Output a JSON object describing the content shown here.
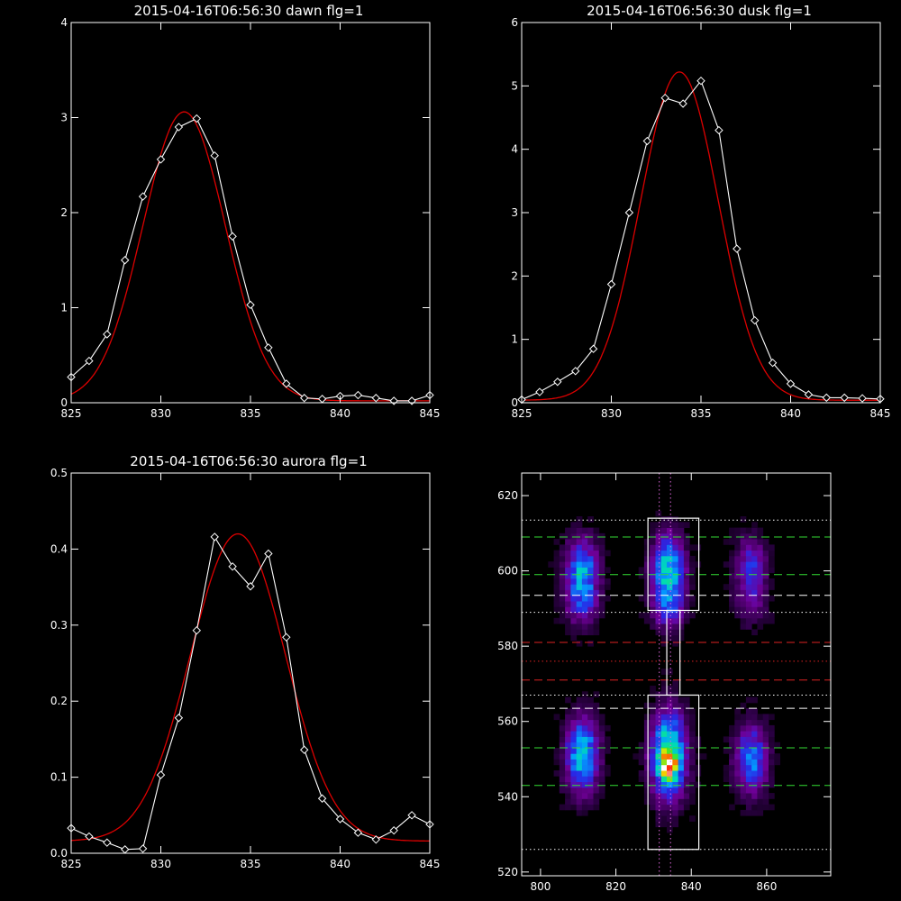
{
  "colors": {
    "background": "#000000",
    "axes": "#ffffff",
    "observed": "#ffffff",
    "fit": "#dd0000",
    "band_green": "#33dd33",
    "band_white": "#ffffff",
    "band_red": "#dd2222",
    "guide": "#dd66dd"
  },
  "chart_data": [
    {
      "id": "dawn",
      "type": "line",
      "title": "2015-04-16T06:56:30 dawn flg=1",
      "xlim": [
        825,
        845
      ],
      "ylim": [
        0,
        4
      ],
      "xticks": [
        825,
        830,
        835,
        840,
        845
      ],
      "yticks": [
        0,
        1,
        2,
        3,
        4
      ],
      "series": [
        {
          "role": "observed",
          "marker": "diamond",
          "x": [
            825,
            826,
            827,
            828,
            829,
            830,
            831,
            832,
            833,
            834,
            835,
            836,
            837,
            838,
            839,
            840,
            841,
            842,
            843,
            844,
            845
          ],
          "y": [
            0.27,
            0.44,
            0.72,
            1.5,
            2.17,
            2.56,
            2.9,
            2.99,
            2.6,
            1.75,
            1.03,
            0.58,
            0.2,
            0.05,
            0.04,
            0.07,
            0.08,
            0.05,
            0.02,
            0.02,
            0.08
          ]
        },
        {
          "role": "fit",
          "gauss": {
            "amp": 3.04,
            "center": 831.3,
            "sigma": 2.3,
            "base": 0.02
          }
        }
      ]
    },
    {
      "id": "dusk",
      "type": "line",
      "title": "2015-04-16T06:56:30 dusk flg=1",
      "xlim": [
        825,
        845
      ],
      "ylim": [
        0,
        6
      ],
      "xticks": [
        825,
        830,
        835,
        840,
        845
      ],
      "yticks": [
        0,
        1,
        2,
        3,
        4,
        5,
        6
      ],
      "series": [
        {
          "role": "observed",
          "marker": "diamond",
          "x": [
            825,
            826,
            827,
            828,
            829,
            830,
            831,
            832,
            833,
            834,
            835,
            836,
            837,
            838,
            839,
            840,
            841,
            842,
            843,
            844,
            845
          ],
          "y": [
            0.05,
            0.17,
            0.33,
            0.5,
            0.85,
            1.87,
            3.0,
            4.13,
            4.81,
            4.72,
            5.08,
            4.3,
            2.43,
            1.3,
            0.63,
            0.3,
            0.13,
            0.08,
            0.08,
            0.07,
            0.06
          ]
        },
        {
          "role": "fit",
          "gauss": {
            "amp": 5.18,
            "center": 833.8,
            "sigma": 2.17,
            "base": 0.04
          }
        }
      ]
    },
    {
      "id": "aurora",
      "type": "line",
      "title": "2015-04-16T06:56:30 aurora flg=1",
      "xlim": [
        825,
        845
      ],
      "ylim": [
        0,
        0.5
      ],
      "xticks": [
        825,
        830,
        835,
        840,
        845
      ],
      "yticks": [
        0,
        0.1,
        0.2,
        0.3,
        0.4,
        0.5
      ],
      "ytick_labels": [
        "0.0",
        "0.1",
        "0.2",
        "0.3",
        "0.4",
        "0.5"
      ],
      "series": [
        {
          "role": "observed",
          "marker": "diamond",
          "x": [
            825,
            826,
            827,
            828,
            829,
            830,
            831,
            832,
            833,
            834,
            835,
            836,
            837,
            838,
            839,
            840,
            841,
            842,
            843,
            844,
            845
          ],
          "y": [
            0.033,
            0.022,
            0.014,
            0.005,
            0.006,
            0.103,
            0.178,
            0.293,
            0.416,
            0.377,
            0.351,
            0.394,
            0.284,
            0.136,
            0.072,
            0.045,
            0.027,
            0.018,
            0.03,
            0.05,
            0.038
          ]
        },
        {
          "role": "fit",
          "gauss": {
            "amp": 0.404,
            "center": 834.3,
            "sigma": 2.65,
            "base": 0.016
          }
        }
      ]
    },
    {
      "id": "image",
      "type": "heatmap",
      "xlim": [
        795,
        877
      ],
      "ylim": [
        519,
        626
      ],
      "xticks": [
        800,
        820,
        840,
        860
      ],
      "yticks": [
        520,
        540,
        560,
        580,
        600,
        620
      ],
      "blobs": [
        {
          "cx": 811,
          "cy": 601,
          "sx": 3,
          "sy": 5.5,
          "amp": 0.42
        },
        {
          "cx": 811,
          "cy": 592,
          "sx": 3,
          "sy": 5,
          "amp": 0.28
        },
        {
          "cx": 834,
          "cy": 601,
          "sx": 3,
          "sy": 6,
          "amp": 0.55
        },
        {
          "cx": 834,
          "cy": 590,
          "sx": 3,
          "sy": 4,
          "amp": 0.3
        },
        {
          "cx": 856,
          "cy": 602,
          "sx": 3,
          "sy": 5,
          "amp": 0.28
        },
        {
          "cx": 856,
          "cy": 592,
          "sx": 3,
          "sy": 4.5,
          "amp": 0.18
        },
        {
          "cx": 811,
          "cy": 551,
          "sx": 3,
          "sy": 7,
          "amp": 0.55
        },
        {
          "cx": 834,
          "cy": 551,
          "sx": 3.2,
          "sy": 8,
          "amp": 0.68
        },
        {
          "cx": 834,
          "cy": 548,
          "sx": 1.6,
          "sy": 2.2,
          "amp": 0.38
        },
        {
          "cx": 856,
          "cy": 550,
          "sx": 3,
          "sy": 6.5,
          "amp": 0.42
        }
      ],
      "hlines": [
        {
          "y": 613.5,
          "style": "dotted",
          "color": "band_white"
        },
        {
          "y": 609,
          "style": "dashed",
          "color": "band_green"
        },
        {
          "y": 599,
          "style": "dashed",
          "color": "band_green"
        },
        {
          "y": 593.5,
          "style": "dashed",
          "color": "band_white"
        },
        {
          "y": 589,
          "style": "dotted",
          "color": "band_white"
        },
        {
          "y": 581,
          "style": "dashed",
          "color": "band_red"
        },
        {
          "y": 576,
          "style": "dotted",
          "color": "band_red"
        },
        {
          "y": 571,
          "style": "dashed",
          "color": "band_red"
        },
        {
          "y": 567,
          "style": "dotted",
          "color": "band_white"
        },
        {
          "y": 563.5,
          "style": "dashed",
          "color": "band_white"
        },
        {
          "y": 553,
          "style": "dashed",
          "color": "band_green"
        },
        {
          "y": 543,
          "style": "dashed",
          "color": "band_green"
        },
        {
          "y": 526,
          "style": "dotted",
          "color": "band_white"
        }
      ],
      "vlines": [
        {
          "x": 831.5,
          "style": "dotted",
          "color": "guide"
        },
        {
          "x": 834.5,
          "style": "dotted",
          "color": "guide"
        }
      ],
      "boxes": [
        {
          "x0": 828.5,
          "x1": 842,
          "y0": 589.5,
          "y1": 614
        },
        {
          "x0": 828.5,
          "x1": 842,
          "y0": 526,
          "y1": 567
        },
        {
          "x0": 833.5,
          "x1": 837,
          "y0": 567,
          "y1": 589.5
        }
      ]
    }
  ]
}
